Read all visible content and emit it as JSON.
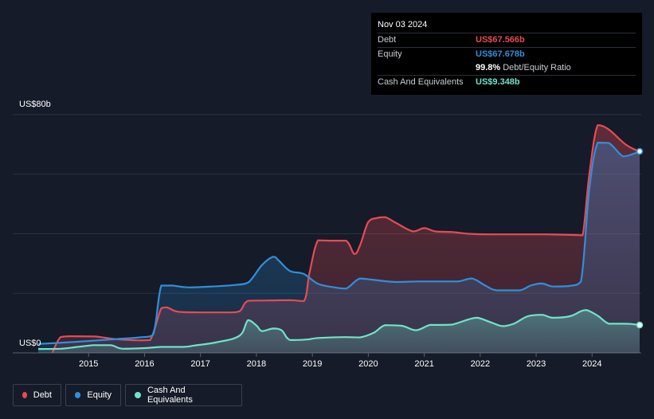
{
  "tooltip": {
    "date": "Nov 03 2024",
    "debt_label": "Debt",
    "debt_value": "US$67.566b",
    "equity_label": "Equity",
    "equity_value": "US$67.678b",
    "ratio_value": "99.8%",
    "ratio_label": "Debt/Equity Ratio",
    "cash_label": "Cash And Equivalents",
    "cash_value": "US$9.348b"
  },
  "legend": {
    "debt": "Debt",
    "equity": "Equity",
    "cash": "Cash And Equivalents"
  },
  "colors": {
    "debt": "#e64b55",
    "equity": "#2f8fdc",
    "cash": "#6fe3c8",
    "background": "#151b28"
  },
  "chart_data": {
    "type": "area",
    "title": "",
    "xlabel": "",
    "ylabel": "",
    "unit": "US$b",
    "y_axis_labels": [
      "US$80b",
      "US$0"
    ],
    "ylim": [
      0,
      80
    ],
    "xlim": [
      2014.1,
      2024.85
    ],
    "x_ticks": [
      "2015",
      "2016",
      "2017",
      "2018",
      "2019",
      "2020",
      "2021",
      "2022",
      "2023",
      "2024"
    ],
    "grid": true,
    "legend_position": "bottom-left",
    "series": [
      {
        "name": "Debt",
        "points": [
          [
            2014.35,
            0
          ],
          [
            2014.5,
            5.3
          ],
          [
            2014.7,
            5.6
          ],
          [
            2015.1,
            5.5
          ],
          [
            2015.5,
            4.6
          ],
          [
            2015.9,
            4.2
          ],
          [
            2016.1,
            4.3
          ],
          [
            2016.3,
            15.0
          ],
          [
            2016.4,
            15.3
          ],
          [
            2016.6,
            13.8
          ],
          [
            2017.0,
            13.6
          ],
          [
            2017.5,
            13.6
          ],
          [
            2017.7,
            14.0
          ],
          [
            2017.85,
            17.5
          ],
          [
            2018.2,
            17.6
          ],
          [
            2018.6,
            17.7
          ],
          [
            2018.85,
            17.4
          ],
          [
            2018.95,
            27.0
          ],
          [
            2019.1,
            37.8
          ],
          [
            2019.3,
            37.7
          ],
          [
            2019.6,
            37.7
          ],
          [
            2019.75,
            33.2
          ],
          [
            2019.85,
            36.0
          ],
          [
            2020.0,
            44.0
          ],
          [
            2020.15,
            45.3
          ],
          [
            2020.3,
            45.6
          ],
          [
            2020.5,
            43.6
          ],
          [
            2020.8,
            40.8
          ],
          [
            2021.0,
            41.9
          ],
          [
            2021.2,
            40.8
          ],
          [
            2021.5,
            40.6
          ],
          [
            2021.8,
            40.0
          ],
          [
            2022.2,
            39.8
          ],
          [
            2022.7,
            39.8
          ],
          [
            2023.2,
            39.8
          ],
          [
            2023.7,
            39.6
          ],
          [
            2023.83,
            39.5
          ],
          [
            2023.95,
            60.0
          ],
          [
            2024.1,
            76.5
          ],
          [
            2024.3,
            75.0
          ],
          [
            2024.6,
            70.0
          ],
          [
            2024.85,
            67.566
          ]
        ]
      },
      {
        "name": "Equity",
        "points": [
          [
            2014.1,
            3.0
          ],
          [
            2014.6,
            3.5
          ],
          [
            2015.4,
            4.5
          ],
          [
            2015.9,
            5.2
          ],
          [
            2016.15,
            6.0
          ],
          [
            2016.3,
            22.6
          ],
          [
            2016.5,
            22.6
          ],
          [
            2016.8,
            22.0
          ],
          [
            2017.3,
            22.4
          ],
          [
            2017.6,
            22.8
          ],
          [
            2017.85,
            23.6
          ],
          [
            2018.1,
            29.5
          ],
          [
            2018.3,
            32.3
          ],
          [
            2018.4,
            31.0
          ],
          [
            2018.6,
            27.5
          ],
          [
            2018.85,
            26.5
          ],
          [
            2019.1,
            23.2
          ],
          [
            2019.4,
            22.0
          ],
          [
            2019.6,
            21.6
          ],
          [
            2019.85,
            25.0
          ],
          [
            2020.1,
            24.5
          ],
          [
            2020.5,
            23.8
          ],
          [
            2020.9,
            24.0
          ],
          [
            2021.3,
            24.0
          ],
          [
            2021.6,
            24.0
          ],
          [
            2021.85,
            25.0
          ],
          [
            2022.1,
            22.5
          ],
          [
            2022.3,
            21.0
          ],
          [
            2022.7,
            21.0
          ],
          [
            2022.9,
            22.6
          ],
          [
            2023.1,
            23.3
          ],
          [
            2023.3,
            22.3
          ],
          [
            2023.6,
            22.5
          ],
          [
            2023.8,
            24.0
          ],
          [
            2023.95,
            55.0
          ],
          [
            2024.1,
            70.6
          ],
          [
            2024.3,
            70.5
          ],
          [
            2024.55,
            66.0
          ],
          [
            2024.7,
            66.6
          ],
          [
            2024.85,
            67.678
          ]
        ]
      },
      {
        "name": "Cash And Equivalents",
        "points": [
          [
            2014.1,
            1.3
          ],
          [
            2014.5,
            1.4
          ],
          [
            2014.8,
            2.0
          ],
          [
            2015.1,
            2.6
          ],
          [
            2015.4,
            2.6
          ],
          [
            2015.6,
            1.4
          ],
          [
            2016.0,
            1.6
          ],
          [
            2016.3,
            2.0
          ],
          [
            2016.7,
            2.0
          ],
          [
            2016.9,
            2.5
          ],
          [
            2017.3,
            3.6
          ],
          [
            2017.7,
            5.8
          ],
          [
            2017.85,
            11.0
          ],
          [
            2018.0,
            9.2
          ],
          [
            2018.1,
            7.3
          ],
          [
            2018.3,
            8.2
          ],
          [
            2018.45,
            7.6
          ],
          [
            2018.6,
            4.3
          ],
          [
            2018.9,
            4.5
          ],
          [
            2019.1,
            5.0
          ],
          [
            2019.6,
            5.3
          ],
          [
            2019.85,
            5.2
          ],
          [
            2020.1,
            6.8
          ],
          [
            2020.3,
            9.3
          ],
          [
            2020.6,
            9.1
          ],
          [
            2020.85,
            7.6
          ],
          [
            2021.1,
            9.4
          ],
          [
            2021.3,
            9.4
          ],
          [
            2021.5,
            9.5
          ],
          [
            2021.8,
            11.3
          ],
          [
            2021.95,
            11.8
          ],
          [
            2022.2,
            10.2
          ],
          [
            2022.4,
            9.0
          ],
          [
            2022.6,
            9.8
          ],
          [
            2022.85,
            12.3
          ],
          [
            2023.1,
            12.8
          ],
          [
            2023.3,
            11.8
          ],
          [
            2023.6,
            12.3
          ],
          [
            2023.8,
            14.0
          ],
          [
            2023.9,
            14.4
          ],
          [
            2024.1,
            12.5
          ],
          [
            2024.3,
            9.8
          ],
          [
            2024.55,
            9.8
          ],
          [
            2024.7,
            9.7
          ],
          [
            2024.85,
            9.348
          ]
        ]
      }
    ]
  }
}
